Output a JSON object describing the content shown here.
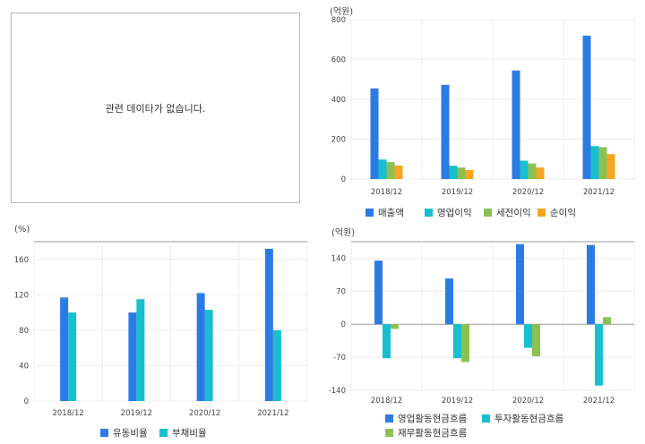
{
  "empty_panel": {
    "message": "관련 데이타가 없습니다."
  },
  "colors": {
    "blue": "#2c7be5",
    "cyan": "#17bfcf",
    "green": "#8cc152",
    "orange": "#f6a623",
    "grid": "#ececec",
    "axis": "#9a9a9a"
  },
  "chart_data": [
    {
      "type": "bar",
      "unit_label": "(억원)",
      "categories": [
        "2018/12",
        "2019/12",
        "2020/12",
        "2021/12"
      ],
      "ylim": [
        0,
        800
      ],
      "yticks": [
        0,
        200,
        400,
        600,
        800
      ],
      "grid": true,
      "legend_position": "bottom",
      "series": [
        {
          "name": "매출액",
          "color": "#2c7be5",
          "values": [
            455,
            473,
            545,
            720
          ]
        },
        {
          "name": "영업이익",
          "color": "#17bfcf",
          "values": [
            98,
            67,
            92,
            165
          ]
        },
        {
          "name": "세전이익",
          "color": "#8cc152",
          "values": [
            85,
            58,
            78,
            160
          ]
        },
        {
          "name": "순이익",
          "color": "#f6a623",
          "values": [
            68,
            45,
            58,
            125
          ]
        }
      ]
    },
    {
      "type": "bar",
      "unit_label": "(%)",
      "categories": [
        "2018/12",
        "2019/12",
        "2020/12",
        "2021/12"
      ],
      "ylim": [
        0,
        180
      ],
      "yticks": [
        0,
        40,
        80,
        120,
        160
      ],
      "grid": true,
      "legend_position": "bottom",
      "series": [
        {
          "name": "유동비율",
          "color": "#2c7be5",
          "values": [
            117,
            100,
            122,
            172
          ]
        },
        {
          "name": "부채비율",
          "color": "#17bfcf",
          "values": [
            100,
            115,
            103,
            80
          ]
        }
      ]
    },
    {
      "type": "bar",
      "unit_label": "(억원)",
      "categories": [
        "2018/12",
        "2019/12",
        "2020/12",
        "2021/12"
      ],
      "ylim": [
        -140,
        175
      ],
      "yticks": [
        -140,
        -70,
        0,
        70,
        140
      ],
      "grid": true,
      "legend_position": "bottom",
      "series": [
        {
          "name": "영업활동현금흐름",
          "color": "#2c7be5",
          "values": [
            135,
            97,
            170,
            168
          ]
        },
        {
          "name": "투자활동현금흐름",
          "color": "#17bfcf",
          "values": [
            -72,
            -72,
            -50,
            -130
          ]
        },
        {
          "name": "재무활동현금흐름",
          "color": "#8cc152",
          "values": [
            -10,
            -80,
            -68,
            15
          ]
        }
      ]
    }
  ]
}
